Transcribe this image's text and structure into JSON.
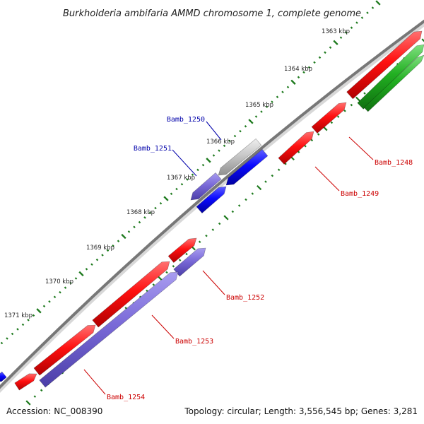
{
  "title": "Burkholderia ambifaria AMMD chromosome 1, complete genome",
  "footer": {
    "accession": "Accession: NC_008390",
    "summary": "Topology: circular; Length: 3,556,545 bp; Genes: 3,281"
  },
  "ticks": [
    {
      "label": "1363 kbp"
    },
    {
      "label": "1364 kbp"
    },
    {
      "label": "1365 kbp"
    },
    {
      "label": "1366 kbp"
    },
    {
      "label": "1367 kbp"
    },
    {
      "label": "1368 kbp"
    },
    {
      "label": "1369 kbp"
    },
    {
      "label": "1370 kbp"
    },
    {
      "label": "1371 kbp"
    }
  ],
  "genes": [
    {
      "name": "Bamb_1248",
      "color": "#cc0000"
    },
    {
      "name": "Bamb_1249",
      "color": "#cc0000"
    },
    {
      "name": "Bamb_1250",
      "color": "#0000aa"
    },
    {
      "name": "Bamb_1251",
      "color": "#0000aa"
    },
    {
      "name": "Bamb_1252",
      "color": "#cc0000"
    },
    {
      "name": "Bamb_1253",
      "color": "#cc0000"
    },
    {
      "name": "Bamb_1254",
      "color": "#cc0000"
    }
  ],
  "colors": {
    "backbone": "#7a7a7a",
    "tick": "#1e7a1e",
    "cds_red": "#ee0000",
    "cds_blue": "#0000ee",
    "cds_purple": "#6e5fd0",
    "cds_grey": "#c4c4c4",
    "cds_green": "#22aa22"
  }
}
